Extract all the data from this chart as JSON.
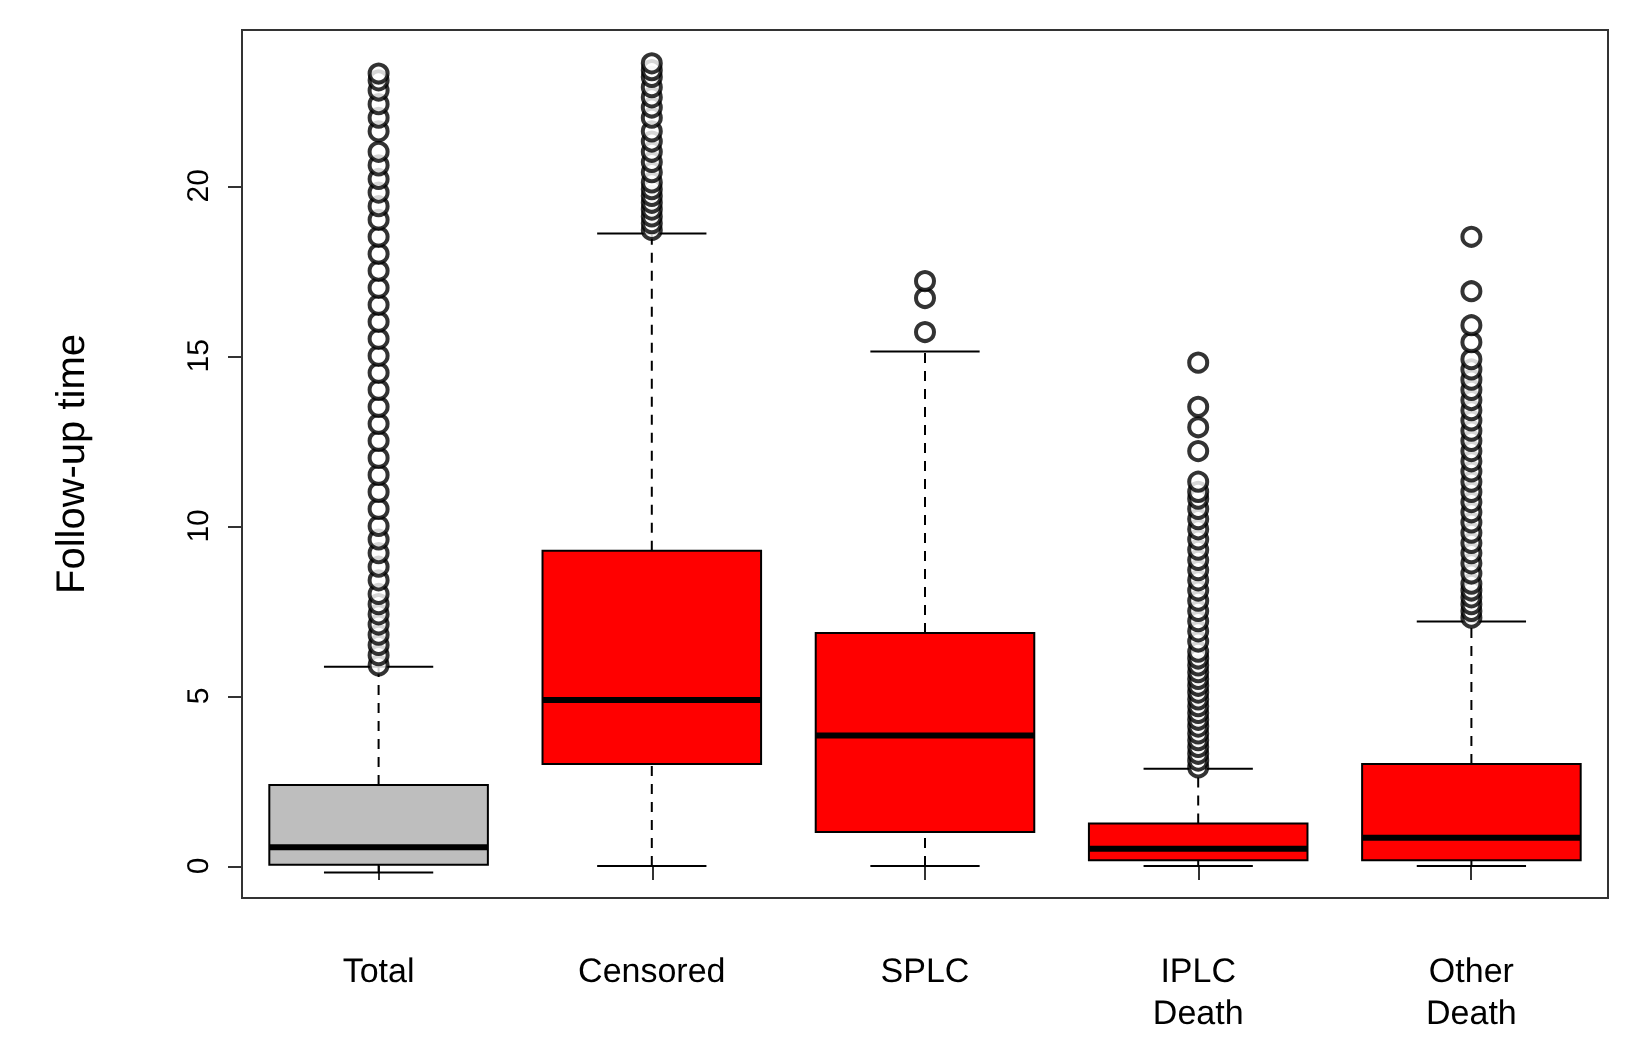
{
  "chart_data": {
    "type": "box",
    "ylabel": "Follow-up time",
    "categories": [
      "Total",
      "Censored",
      "SPLC",
      "IPLC\nDeath",
      "Other\nDeath"
    ],
    "colors": [
      "#bebebe",
      "#ff0000",
      "#ff0000",
      "#ff0000",
      "#ff0000"
    ],
    "boxes": [
      {
        "low": -0.19,
        "q1": 0.04,
        "median": 0.55,
        "q3": 2.38,
        "high": 5.86,
        "outliers": [
          5.9,
          6.2,
          6.5,
          6.8,
          7.1,
          7.4,
          7.7,
          8.0,
          8.4,
          8.8,
          9.2,
          9.6,
          10.0,
          10.5,
          11.0,
          11.5,
          12.0,
          12.5,
          13.0,
          13.5,
          14.0,
          14.5,
          15.0,
          15.5,
          16.0,
          16.5,
          17.0,
          17.5,
          18.0,
          18.5,
          19.0,
          19.4,
          19.8,
          20.2,
          20.6,
          21.0,
          21.6,
          22.0,
          22.4,
          22.8,
          23.1,
          23.3
        ]
      },
      {
        "low": 0,
        "q1": 3.0,
        "median": 4.88,
        "q3": 9.27,
        "high": 18.6,
        "outliers": [
          18.7,
          18.9,
          19.1,
          19.3,
          19.5,
          19.7,
          19.9,
          20.1,
          20.4,
          20.7,
          21.0,
          21.3,
          21.6,
          22.0,
          22.3,
          22.6,
          22.9,
          23.2,
          23.4,
          23.6
        ]
      },
      {
        "low": 0,
        "q1": 1.0,
        "median": 3.84,
        "q3": 6.85,
        "high": 15.13,
        "outliers": [
          15.7,
          16.7,
          17.2
        ]
      },
      {
        "low": 0,
        "q1": 0.17,
        "median": 0.51,
        "q3": 1.25,
        "high": 2.86,
        "outliers": [
          2.9,
          3.1,
          3.3,
          3.5,
          3.7,
          3.9,
          4.1,
          4.3,
          4.5,
          4.7,
          4.9,
          5.1,
          5.3,
          5.5,
          5.7,
          5.9,
          6.1,
          6.3,
          6.6,
          6.9,
          7.2,
          7.5,
          7.8,
          8.1,
          8.4,
          8.7,
          9.0,
          9.3,
          9.6,
          9.9,
          10.2,
          10.5,
          10.8,
          11.0,
          11.3,
          12.2,
          12.9,
          13.5,
          14.8
        ]
      },
      {
        "low": 0,
        "q1": 0.17,
        "median": 0.83,
        "q3": 3.0,
        "high": 7.19,
        "outliers": [
          7.3,
          7.5,
          7.7,
          7.9,
          8.1,
          8.3,
          8.6,
          8.9,
          9.2,
          9.5,
          9.8,
          10.1,
          10.4,
          10.7,
          11.0,
          11.3,
          11.6,
          11.9,
          12.2,
          12.5,
          12.8,
          13.1,
          13.4,
          13.7,
          14.0,
          14.3,
          14.6,
          14.9,
          15.4,
          15.9,
          16.9,
          18.5
        ]
      }
    ],
    "ylim": [
      -0.94,
      24.58
    ],
    "yticks": [
      0,
      5,
      10,
      15,
      20
    ],
    "grid": false
  }
}
